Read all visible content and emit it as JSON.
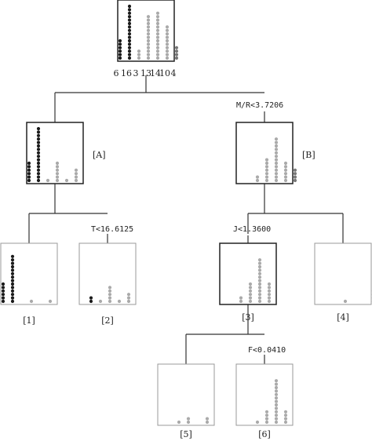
{
  "root": {
    "counts": [
      "6",
      "16",
      "3",
      "13",
      "14",
      "10",
      "4"
    ]
  },
  "splits": {
    "root": "M/R<3.7206",
    "a": "T<16.6125",
    "b": "J<1.3600",
    "node3": "F<0.0410"
  },
  "labels": {
    "A": "[A]",
    "B": "[B]",
    "n1": "[1]",
    "n2": "[2]",
    "n3": "[3]",
    "n4": "[4]",
    "n5": "[5]",
    "n6": "[6]"
  },
  "colors": {
    "classes": [
      "#1a1a1a",
      "#1a1a1a",
      "#aaaaaa",
      "#aaaaaa",
      "#aaaaaa",
      "#aaaaaa",
      "#777777"
    ],
    "edge": "#333333"
  },
  "nodes": {
    "root": [
      6,
      16,
      3,
      13,
      14,
      10,
      4
    ],
    "A": [
      6,
      16,
      1,
      6,
      1,
      4,
      0
    ],
    "B": [
      0,
      0,
      2,
      7,
      13,
      6,
      4
    ],
    "n1": [
      6,
      14,
      0,
      1,
      0,
      1,
      0
    ],
    "n2": [
      0,
      2,
      1,
      5,
      1,
      3,
      0
    ],
    "n3": [
      0,
      0,
      2,
      6,
      13,
      6,
      0
    ],
    "n4": [
      0,
      0,
      0,
      1,
      0,
      0,
      4
    ],
    "n5": [
      0,
      0,
      1,
      2,
      0,
      2,
      0
    ],
    "n6": [
      0,
      0,
      1,
      4,
      13,
      4,
      0
    ]
  }
}
